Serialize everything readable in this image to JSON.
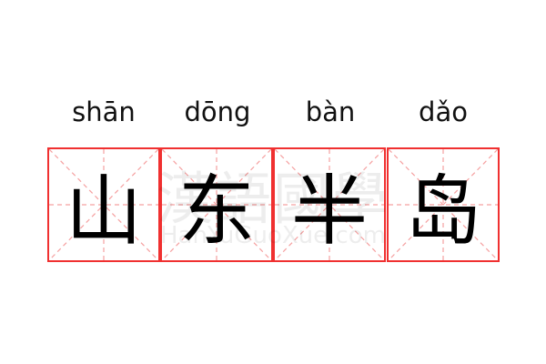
{
  "entries": [
    {
      "pinyin": "shān",
      "char": "山"
    },
    {
      "pinyin": "dōng",
      "char": "东"
    },
    {
      "pinyin": "bàn",
      "char": "半"
    },
    {
      "pinyin": "dǎo",
      "char": "岛"
    }
  ],
  "watermark": {
    "chinese": "漢語國學",
    "latin": "HanYuGuoXue.com"
  },
  "colors": {
    "border": "#f03030",
    "guide": "#f5a0a0"
  }
}
